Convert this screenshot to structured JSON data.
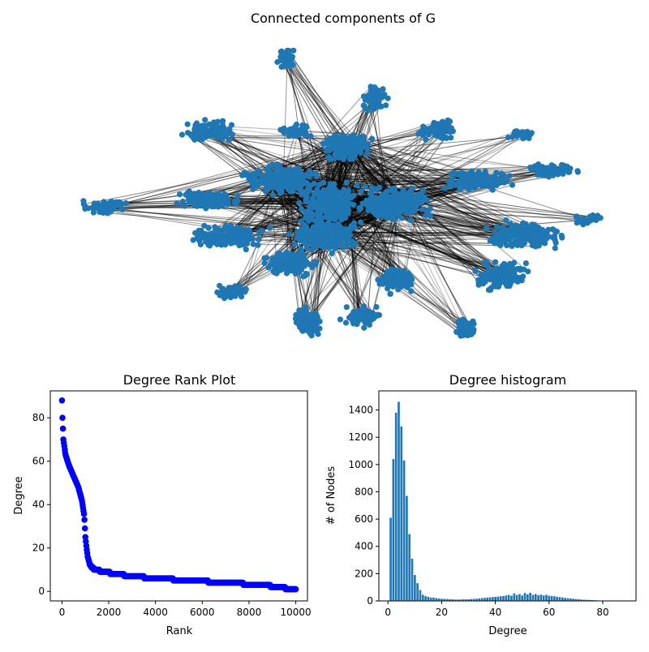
{
  "chart_data": [
    {
      "type": "network",
      "title": "Connected components of G",
      "node_color": "#1f77b4",
      "edge_color": "#000000",
      "clusters": [
        {
          "cx": 352,
          "cy": 72,
          "rx": 16,
          "ry": 14,
          "n": 60
        },
        {
          "cx": 462,
          "cy": 122,
          "rx": 18,
          "ry": 18,
          "n": 70
        },
        {
          "cx": 255,
          "cy": 163,
          "rx": 40,
          "ry": 16,
          "n": 110
        },
        {
          "cx": 365,
          "cy": 162,
          "rx": 22,
          "ry": 12,
          "n": 50
        },
        {
          "cx": 540,
          "cy": 160,
          "rx": 30,
          "ry": 14,
          "n": 80
        },
        {
          "cx": 425,
          "cy": 180,
          "rx": 40,
          "ry": 22,
          "n": 160
        },
        {
          "cx": 645,
          "cy": 165,
          "rx": 22,
          "ry": 8,
          "n": 30
        },
        {
          "cx": 345,
          "cy": 222,
          "rx": 55,
          "ry": 22,
          "n": 200
        },
        {
          "cx": 590,
          "cy": 222,
          "rx": 50,
          "ry": 16,
          "n": 160
        },
        {
          "cx": 680,
          "cy": 210,
          "rx": 40,
          "ry": 10,
          "n": 70
        },
        {
          "cx": 130,
          "cy": 255,
          "rx": 35,
          "ry": 10,
          "n": 80
        },
        {
          "cx": 255,
          "cy": 247,
          "rx": 45,
          "ry": 14,
          "n": 140
        },
        {
          "cx": 485,
          "cy": 250,
          "rx": 55,
          "ry": 25,
          "n": 260
        },
        {
          "cx": 405,
          "cy": 250,
          "rx": 45,
          "ry": 35,
          "n": 240
        },
        {
          "cx": 725,
          "cy": 270,
          "rx": 25,
          "ry": 8,
          "n": 30
        },
        {
          "cx": 280,
          "cy": 292,
          "rx": 60,
          "ry": 18,
          "n": 180
        },
        {
          "cx": 400,
          "cy": 290,
          "rx": 50,
          "ry": 25,
          "n": 220
        },
        {
          "cx": 645,
          "cy": 290,
          "rx": 55,
          "ry": 20,
          "n": 200
        },
        {
          "cx": 360,
          "cy": 325,
          "rx": 40,
          "ry": 22,
          "n": 150
        },
        {
          "cx": 490,
          "cy": 345,
          "rx": 30,
          "ry": 18,
          "n": 120
        },
        {
          "cx": 620,
          "cy": 340,
          "rx": 40,
          "ry": 22,
          "n": 140
        },
        {
          "cx": 285,
          "cy": 360,
          "rx": 25,
          "ry": 12,
          "n": 60
        },
        {
          "cx": 380,
          "cy": 398,
          "rx": 22,
          "ry": 22,
          "n": 100
        },
        {
          "cx": 445,
          "cy": 390,
          "rx": 28,
          "ry": 16,
          "n": 90
        },
        {
          "cx": 575,
          "cy": 405,
          "rx": 18,
          "ry": 14,
          "n": 60
        }
      ]
    },
    {
      "type": "scatter",
      "title": "Degree Rank Plot",
      "xlabel": "Rank",
      "ylabel": "Degree",
      "xlim": [
        -500,
        10500
      ],
      "ylim": [
        -4.4,
        92.4
      ],
      "xticks": [
        0,
        2000,
        4000,
        6000,
        8000,
        10000
      ],
      "yticks": [
        0,
        20,
        40,
        60,
        80
      ],
      "marker_color": "#0000ff",
      "curve": [
        [
          0,
          88
        ],
        [
          20,
          80
        ],
        [
          60,
          70
        ],
        [
          150,
          63
        ],
        [
          300,
          58
        ],
        [
          500,
          53
        ],
        [
          700,
          48
        ],
        [
          850,
          42
        ],
        [
          950,
          35
        ],
        [
          1000,
          25
        ],
        [
          1050,
          20
        ],
        [
          1100,
          16
        ],
        [
          1200,
          12
        ],
        [
          1400,
          10
        ],
        [
          1800,
          9
        ],
        [
          2300,
          8
        ],
        [
          3000,
          7
        ],
        [
          4000,
          6
        ],
        [
          5500,
          5
        ],
        [
          7000,
          4
        ],
        [
          8500,
          3
        ],
        [
          9300,
          2
        ],
        [
          9800,
          1
        ],
        [
          10000,
          1
        ]
      ]
    },
    {
      "type": "bar",
      "title": "Degree histogram",
      "xlabel": "Degree",
      "ylabel": "# of Nodes",
      "xlim": [
        -3.4,
        92.4
      ],
      "ylim": [
        0,
        1540
      ],
      "xticks": [
        0,
        20,
        40,
        60,
        80
      ],
      "yticks": [
        0,
        200,
        400,
        600,
        800,
        1000,
        1200,
        1400
      ],
      "bar_color": "#1f77b4",
      "x": [
        1,
        2,
        3,
        4,
        5,
        6,
        7,
        8,
        9,
        10,
        11,
        12,
        13,
        14,
        15,
        16,
        17,
        18,
        19,
        20,
        21,
        22,
        23,
        24,
        25,
        26,
        27,
        28,
        29,
        30,
        31,
        32,
        33,
        34,
        35,
        36,
        37,
        38,
        39,
        40,
        41,
        42,
        43,
        44,
        45,
        46,
        47,
        48,
        49,
        50,
        51,
        52,
        53,
        54,
        55,
        56,
        57,
        58,
        59,
        60,
        61,
        62,
        63,
        64,
        65,
        66,
        67,
        68,
        69,
        70,
        71,
        72,
        73,
        74,
        75,
        76,
        77,
        78,
        79,
        80,
        81,
        82,
        83,
        84,
        85,
        86,
        87,
        88
      ],
      "values": [
        610,
        1040,
        1380,
        1460,
        1280,
        1030,
        770,
        490,
        310,
        190,
        130,
        80,
        45,
        35,
        30,
        25,
        25,
        20,
        18,
        16,
        15,
        14,
        12,
        12,
        10,
        10,
        10,
        12,
        12,
        12,
        14,
        15,
        16,
        18,
        20,
        22,
        24,
        26,
        28,
        30,
        32,
        34,
        36,
        40,
        44,
        38,
        55,
        42,
        50,
        40,
        58,
        48,
        60,
        44,
        50,
        42,
        46,
        40,
        44,
        38,
        36,
        34,
        30,
        28,
        25,
        22,
        20,
        18,
        16,
        14,
        12,
        10,
        9,
        8,
        7,
        6,
        5,
        4,
        3,
        3,
        2,
        2,
        2,
        1,
        1,
        1,
        1,
        1
      ]
    }
  ]
}
